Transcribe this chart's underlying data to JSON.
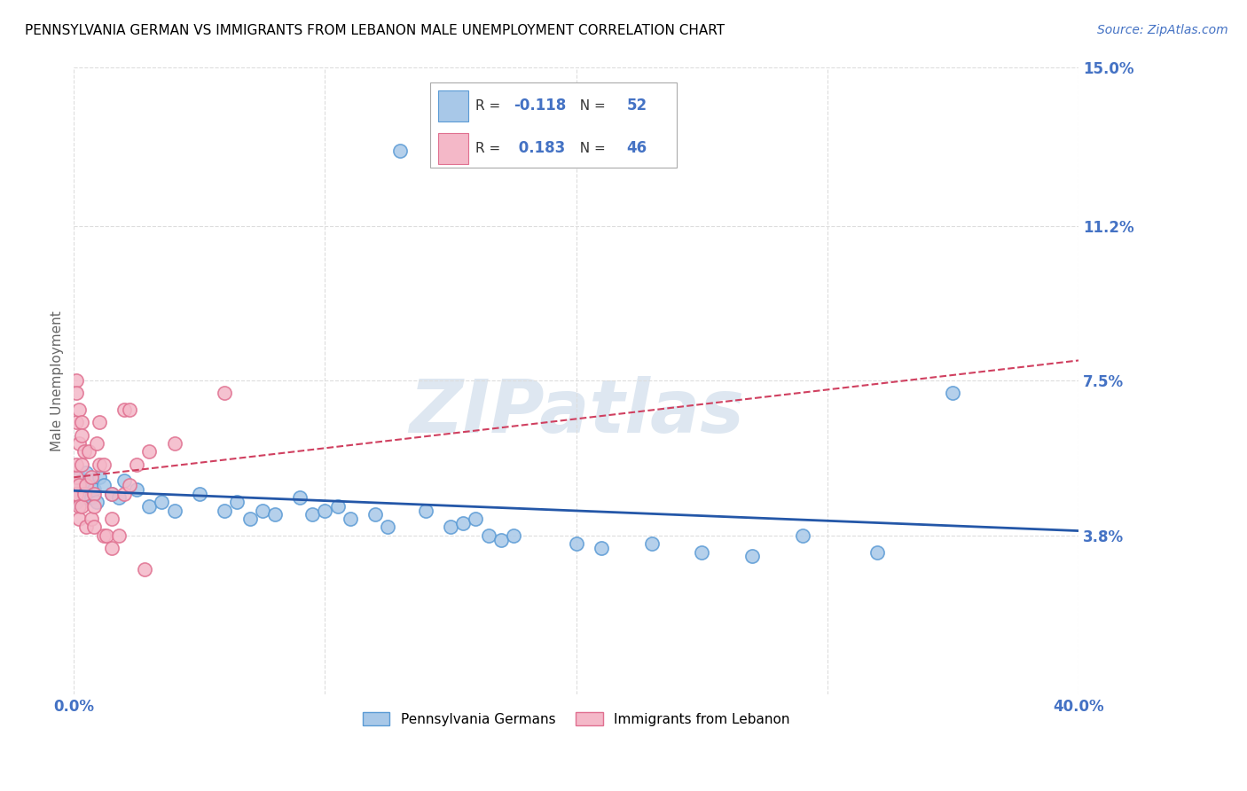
{
  "title": "PENNSYLVANIA GERMAN VS IMMIGRANTS FROM LEBANON MALE UNEMPLOYMENT CORRELATION CHART",
  "source": "Source: ZipAtlas.com",
  "ylabel": "Male Unemployment",
  "xlim": [
    0.0,
    0.4
  ],
  "ylim": [
    0.0,
    0.15
  ],
  "yticks": [
    0.038,
    0.075,
    0.112,
    0.15
  ],
  "ytick_labels": [
    "3.8%",
    "7.5%",
    "11.2%",
    "15.0%"
  ],
  "xtick_labels_show": [
    "0.0%",
    "40.0%"
  ],
  "xtick_show_vals": [
    0.0,
    0.4
  ],
  "blue_color": "#a8c8e8",
  "blue_edge_color": "#5b9bd5",
  "pink_color": "#f4b8c8",
  "pink_edge_color": "#e07090",
  "blue_line_color": "#2457a8",
  "pink_line_color": "#d04060",
  "blue_label": "Pennsylvania Germans",
  "pink_label": "Immigrants from Lebanon",
  "R_blue": -0.118,
  "N_blue": 52,
  "R_pink": 0.183,
  "N_pink": 46,
  "blue_scatter": [
    [
      0.0,
      0.048
    ],
    [
      0.001,
      0.046
    ],
    [
      0.001,
      0.05
    ],
    [
      0.002,
      0.052
    ],
    [
      0.003,
      0.051
    ],
    [
      0.003,
      0.049
    ],
    [
      0.004,
      0.05
    ],
    [
      0.004,
      0.047
    ],
    [
      0.005,
      0.053
    ],
    [
      0.005,
      0.048
    ],
    [
      0.006,
      0.051
    ],
    [
      0.007,
      0.047
    ],
    [
      0.008,
      0.049
    ],
    [
      0.009,
      0.046
    ],
    [
      0.01,
      0.052
    ],
    [
      0.012,
      0.05
    ],
    [
      0.015,
      0.048
    ],
    [
      0.018,
      0.047
    ],
    [
      0.02,
      0.051
    ],
    [
      0.025,
      0.049
    ],
    [
      0.03,
      0.045
    ],
    [
      0.035,
      0.046
    ],
    [
      0.04,
      0.044
    ],
    [
      0.05,
      0.048
    ],
    [
      0.06,
      0.044
    ],
    [
      0.065,
      0.046
    ],
    [
      0.07,
      0.042
    ],
    [
      0.075,
      0.044
    ],
    [
      0.08,
      0.043
    ],
    [
      0.09,
      0.047
    ],
    [
      0.095,
      0.043
    ],
    [
      0.1,
      0.044
    ],
    [
      0.105,
      0.045
    ],
    [
      0.11,
      0.042
    ],
    [
      0.12,
      0.043
    ],
    [
      0.125,
      0.04
    ],
    [
      0.13,
      0.13
    ],
    [
      0.14,
      0.044
    ],
    [
      0.15,
      0.04
    ],
    [
      0.155,
      0.041
    ],
    [
      0.16,
      0.042
    ],
    [
      0.165,
      0.038
    ],
    [
      0.17,
      0.037
    ],
    [
      0.175,
      0.038
    ],
    [
      0.2,
      0.036
    ],
    [
      0.21,
      0.035
    ],
    [
      0.23,
      0.036
    ],
    [
      0.25,
      0.034
    ],
    [
      0.27,
      0.033
    ],
    [
      0.29,
      0.038
    ],
    [
      0.32,
      0.034
    ],
    [
      0.35,
      0.072
    ]
  ],
  "pink_scatter": [
    [
      0.0,
      0.048
    ],
    [
      0.0,
      0.05
    ],
    [
      0.001,
      0.052
    ],
    [
      0.001,
      0.075
    ],
    [
      0.001,
      0.055
    ],
    [
      0.001,
      0.065
    ],
    [
      0.001,
      0.048
    ],
    [
      0.001,
      0.072
    ],
    [
      0.002,
      0.06
    ],
    [
      0.002,
      0.068
    ],
    [
      0.002,
      0.05
    ],
    [
      0.002,
      0.045
    ],
    [
      0.002,
      0.042
    ],
    [
      0.003,
      0.065
    ],
    [
      0.003,
      0.055
    ],
    [
      0.003,
      0.062
    ],
    [
      0.003,
      0.045
    ],
    [
      0.004,
      0.058
    ],
    [
      0.004,
      0.048
    ],
    [
      0.005,
      0.05
    ],
    [
      0.005,
      0.04
    ],
    [
      0.006,
      0.058
    ],
    [
      0.007,
      0.042
    ],
    [
      0.007,
      0.052
    ],
    [
      0.008,
      0.048
    ],
    [
      0.008,
      0.045
    ],
    [
      0.008,
      0.04
    ],
    [
      0.009,
      0.06
    ],
    [
      0.01,
      0.055
    ],
    [
      0.01,
      0.065
    ],
    [
      0.012,
      0.055
    ],
    [
      0.012,
      0.038
    ],
    [
      0.013,
      0.038
    ],
    [
      0.015,
      0.035
    ],
    [
      0.015,
      0.048
    ],
    [
      0.015,
      0.042
    ],
    [
      0.018,
      0.038
    ],
    [
      0.02,
      0.068
    ],
    [
      0.02,
      0.048
    ],
    [
      0.022,
      0.068
    ],
    [
      0.022,
      0.05
    ],
    [
      0.025,
      0.055
    ],
    [
      0.028,
      0.03
    ],
    [
      0.03,
      0.058
    ],
    [
      0.04,
      0.06
    ],
    [
      0.06,
      0.072
    ]
  ],
  "watermark": "ZIPatlas",
  "watermark_color": "#c8d8e8",
  "background_color": "#ffffff",
  "grid_color": "#dddddd",
  "tick_label_color": "#4472c4",
  "title_color": "#000000",
  "axis_label_color": "#666666",
  "title_fontsize": 11,
  "axis_label_fontsize": 11,
  "tick_fontsize": 12,
  "source_fontsize": 10
}
